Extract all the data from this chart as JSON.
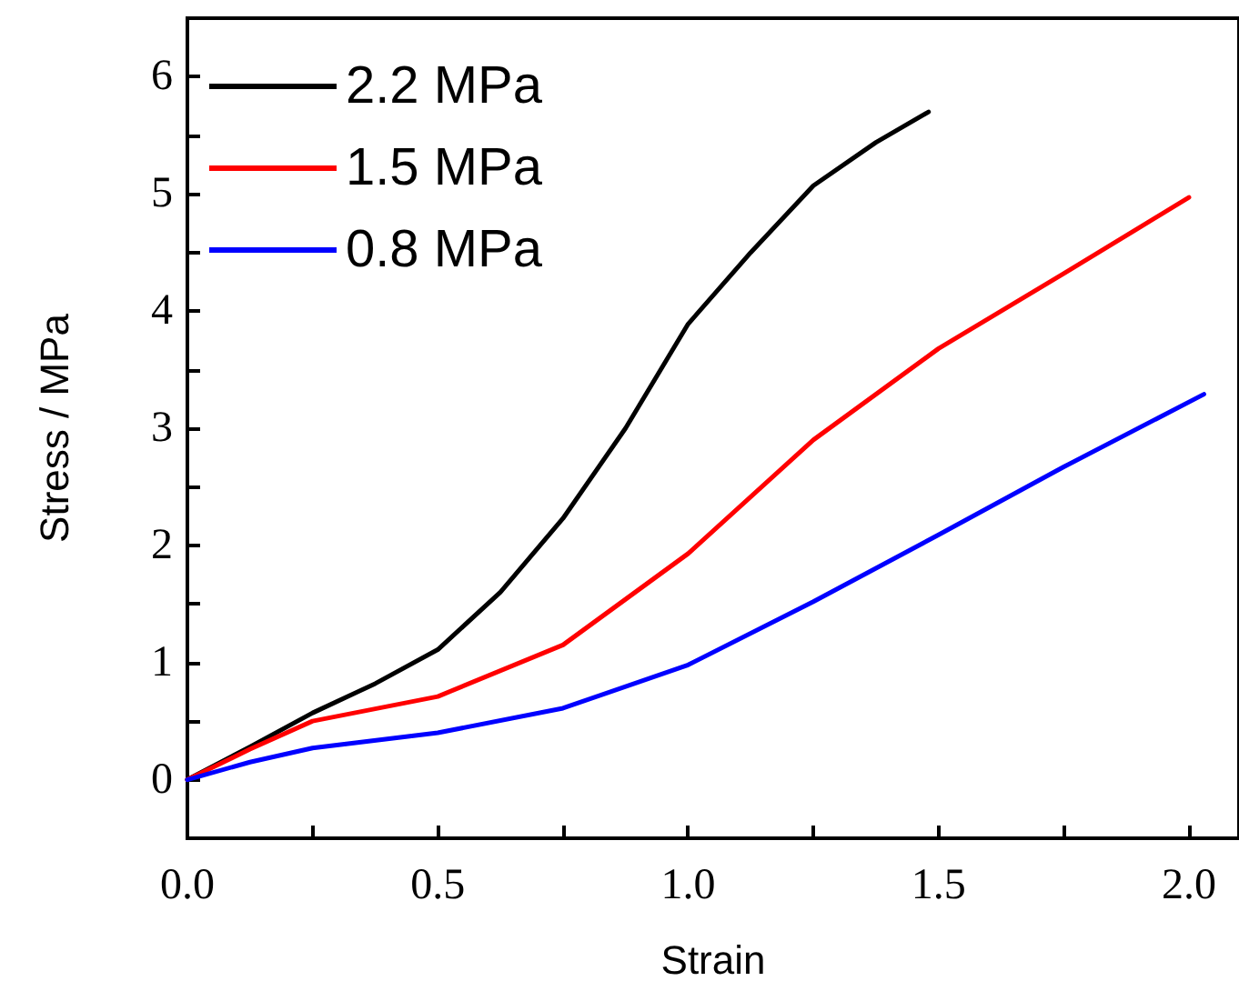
{
  "chart_data": {
    "type": "line",
    "xlabel": "Strain",
    "ylabel": "Stress / MPa",
    "xlim": [
      0,
      2.1
    ],
    "ylim": [
      -0.5,
      6.5
    ],
    "xticks": [
      {
        "value": 0,
        "label": "0.0"
      },
      {
        "value": 0.25,
        "label": null
      },
      {
        "value": 0.5,
        "label": "0.5"
      },
      {
        "value": 0.75,
        "label": null
      },
      {
        "value": 1,
        "label": "1.0"
      },
      {
        "value": 1.25,
        "label": null
      },
      {
        "value": 1.5,
        "label": "1.5"
      },
      {
        "value": 1.75,
        "label": null
      },
      {
        "value": 2,
        "label": "2.0"
      }
    ],
    "yticks": [
      0,
      {
        "value": 0.5,
        "label": null
      },
      1,
      {
        "value": 1.5,
        "label": null
      },
      2,
      {
        "value": 2.5,
        "label": null
      },
      3,
      {
        "value": 3.5,
        "label": null
      },
      4,
      {
        "value": 4.5,
        "label": null
      },
      5,
      {
        "value": 5.5,
        "label": null
      },
      6
    ],
    "grid": false,
    "legend": "top left",
    "line_style": "solid",
    "marker": "none",
    "series": [
      {
        "name": "2.2 MPa",
        "color": "#000000",
        "x": [
          0,
          0.125,
          0.25,
          0.375,
          0.5,
          0.625,
          0.75,
          0.875,
          1,
          1.125,
          1.25,
          1.375,
          1.48
        ],
        "values": [
          0,
          0.28,
          0.57,
          0.82,
          1.11,
          1.6,
          2.23,
          3.0,
          3.89,
          4.5,
          5.07,
          5.44,
          5.7
        ]
      },
      {
        "name": "1.5 MPa",
        "color": "#ff0000",
        "x": [
          0,
          0.125,
          0.25,
          0.5,
          0.75,
          1,
          1.25,
          1.5,
          1.75,
          2
        ],
        "values": [
          0,
          0.26,
          0.5,
          0.71,
          1.15,
          1.93,
          2.9,
          3.68,
          4.32,
          4.97
        ]
      },
      {
        "name": "0.8 MPa",
        "color": "#0000ff",
        "x": [
          0,
          0.125,
          0.25,
          0.5,
          0.75,
          1,
          1.25,
          1.5,
          1.75,
          2.03
        ],
        "values": [
          0,
          0.15,
          0.27,
          0.4,
          0.61,
          0.98,
          1.52,
          2.09,
          2.67,
          3.29
        ]
      }
    ]
  }
}
